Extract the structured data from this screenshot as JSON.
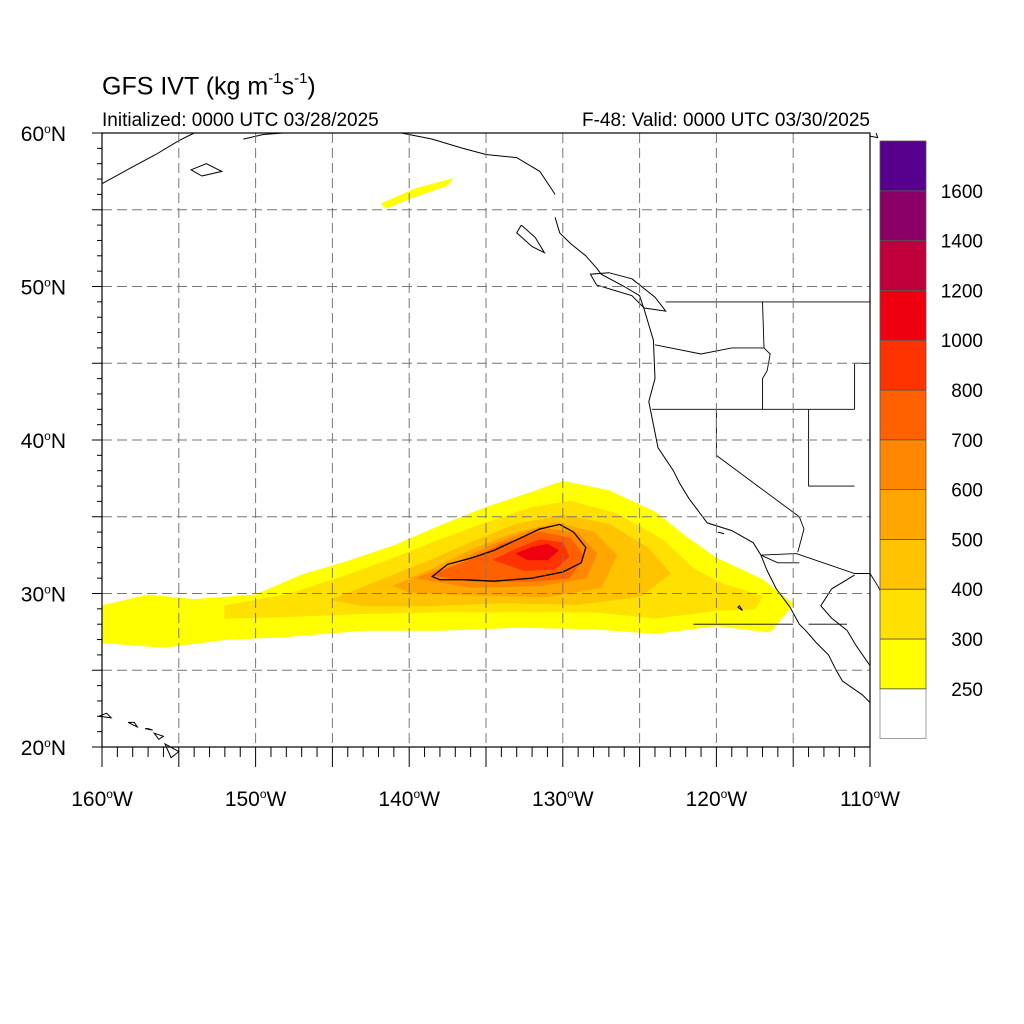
{
  "title": {
    "prefix": "GFS IVT (kg m",
    "exp1": "-1",
    "mid": "s",
    "exp2": "-1",
    "suffix": ")"
  },
  "initialized": "Initialized: 0000 UTC 03/28/2025",
  "valid": "F-48: Valid: 0000 UTC 03/30/2025",
  "lat_labels": [
    {
      "lat": 60,
      "num": "60",
      "unit": "N"
    },
    {
      "lat": 50,
      "num": "50",
      "unit": "N"
    },
    {
      "lat": 40,
      "num": "40",
      "unit": "N"
    },
    {
      "lat": 30,
      "num": "30",
      "unit": "N"
    },
    {
      "lat": 20,
      "num": "20",
      "unit": "N"
    }
  ],
  "lon_labels": [
    {
      "lon": -160,
      "num": "160",
      "unit": "W"
    },
    {
      "lon": -150,
      "num": "150",
      "unit": "W"
    },
    {
      "lon": -140,
      "num": "140",
      "unit": "W"
    },
    {
      "lon": -130,
      "num": "130",
      "unit": "W"
    },
    {
      "lon": -120,
      "num": "120",
      "unit": "W"
    },
    {
      "lon": -110,
      "num": "110",
      "unit": "W"
    }
  ],
  "colorbar": {
    "labels": [
      "250",
      "300",
      "400",
      "500",
      "600",
      "700",
      "800",
      "1000",
      "1200",
      "1400",
      "1600"
    ],
    "colors": [
      "#ffffff",
      "#ffff00",
      "#ffe000",
      "#ffc300",
      "#ffa600",
      "#ff8800",
      "#ff6000",
      "#ff3300",
      "#ee0010",
      "#c0003c",
      "#8b0067",
      "#56008d"
    ]
  },
  "map_extent": {
    "lon_min": -160,
    "lon_max": -110,
    "lat_min": 20,
    "lat_max": 60
  },
  "ivt_field": {
    "units": "kg m-1 s-1",
    "bands": [
      {
        "level": 250,
        "color": "#ffff00",
        "outline": [
          [
            -160,
            29.2
          ],
          [
            -157,
            29.9
          ],
          [
            -154,
            29.6
          ],
          [
            -150,
            29.9
          ],
          [
            -147,
            31.2
          ],
          [
            -144,
            32.1
          ],
          [
            -141,
            33.1
          ],
          [
            -138,
            34.4
          ],
          [
            -135,
            35.6
          ],
          [
            -132,
            36.6
          ],
          [
            -130,
            37.3
          ],
          [
            -127,
            36.7
          ],
          [
            -124,
            35.3
          ],
          [
            -122,
            33.7
          ],
          [
            -120,
            32.3
          ],
          [
            -117,
            30.9
          ],
          [
            -115,
            29.3
          ],
          [
            -116.5,
            27.5
          ],
          [
            -120,
            27.9
          ],
          [
            -124,
            27.4
          ],
          [
            -128,
            27.7
          ],
          [
            -133,
            27.8
          ],
          [
            -138,
            27.6
          ],
          [
            -143,
            27.6
          ],
          [
            -148,
            27.2
          ],
          [
            -152,
            27.0
          ],
          [
            -156,
            26.5
          ],
          [
            -160,
            26.8
          ]
        ]
      },
      {
        "level": 300,
        "color": "#ffe000",
        "outline": [
          [
            -152,
            29.2
          ],
          [
            -148,
            29.9
          ],
          [
            -144,
            31.2
          ],
          [
            -141,
            32.3
          ],
          [
            -138,
            33.5
          ],
          [
            -135,
            34.6
          ],
          [
            -132,
            35.6
          ],
          [
            -129.5,
            36.0
          ],
          [
            -126.5,
            35.2
          ],
          [
            -123.5,
            33.5
          ],
          [
            -121.5,
            31.6
          ],
          [
            -119.5,
            30.6
          ],
          [
            -117,
            29.8
          ],
          [
            -117.5,
            29.0
          ],
          [
            -120,
            28.9
          ],
          [
            -124,
            28.4
          ],
          [
            -128,
            28.8
          ],
          [
            -133,
            28.8
          ],
          [
            -138,
            28.8
          ],
          [
            -143,
            28.7
          ],
          [
            -148,
            28.5
          ],
          [
            -152,
            28.4
          ]
        ]
      },
      {
        "level": 400,
        "color": "#ffc300",
        "outline": [
          [
            -145,
            29.6
          ],
          [
            -142,
            30.8
          ],
          [
            -139,
            32.0
          ],
          [
            -136,
            33.3
          ],
          [
            -133,
            34.5
          ],
          [
            -130,
            35.1
          ],
          [
            -127,
            34.5
          ],
          [
            -124.5,
            33.0
          ],
          [
            -123,
            31.3
          ],
          [
            -125,
            29.8
          ],
          [
            -129,
            29.3
          ],
          [
            -134,
            29.4
          ],
          [
            -139,
            29.2
          ],
          [
            -143,
            29.2
          ]
        ]
      },
      {
        "level": 500,
        "color": "#ffa600",
        "outline": [
          [
            -141,
            30.5
          ],
          [
            -138.5,
            31.6
          ],
          [
            -136,
            32.8
          ],
          [
            -133.5,
            33.8
          ],
          [
            -130.5,
            34.6
          ],
          [
            -128,
            34.0
          ],
          [
            -126.5,
            32.5
          ],
          [
            -127.5,
            30.4
          ],
          [
            -131,
            29.8
          ],
          [
            -136,
            29.9
          ],
          [
            -140,
            30.1
          ]
        ]
      },
      {
        "level": 600,
        "color": "#ff8800",
        "outline": [
          [
            -139.5,
            31.0
          ],
          [
            -137,
            32.0
          ],
          [
            -134.5,
            33.2
          ],
          [
            -131.5,
            34.3
          ],
          [
            -129,
            33.9
          ],
          [
            -127.8,
            32.6
          ],
          [
            -128.5,
            31.0
          ],
          [
            -131.5,
            30.5
          ],
          [
            -136,
            30.4
          ]
        ]
      },
      {
        "level": 700,
        "color": "#ff6000",
        "outline": [
          [
            -138.5,
            31.2
          ],
          [
            -136,
            32.2
          ],
          [
            -134,
            33.2
          ],
          [
            -131.5,
            34.0
          ],
          [
            -129.5,
            33.6
          ],
          [
            -128.6,
            32.4
          ],
          [
            -129.6,
            31.0
          ],
          [
            -132,
            30.8
          ],
          [
            -136,
            30.8
          ]
        ]
      },
      {
        "level": 800,
        "color": "#ff3300",
        "outline": [
          [
            -134.5,
            32.2
          ],
          [
            -133,
            32.9
          ],
          [
            -131.5,
            33.5
          ],
          [
            -130,
            33.3
          ],
          [
            -129.6,
            32.4
          ],
          [
            -130.5,
            31.6
          ],
          [
            -132.5,
            31.5
          ]
        ]
      },
      {
        "level": 1000,
        "color": "#ee0010",
        "outline": [
          [
            -133,
            32.6
          ],
          [
            -132,
            33.0
          ],
          [
            -131,
            33.2
          ],
          [
            -130.3,
            32.8
          ],
          [
            -131,
            32.2
          ],
          [
            -132.3,
            32.2
          ]
        ]
      }
    ],
    "contour": [
      [
        -138.5,
        31.1
      ],
      [
        -137.5,
        31.9
      ],
      [
        -136,
        32.3
      ],
      [
        -134.5,
        32.8
      ],
      [
        -133,
        33.5
      ],
      [
        -131.5,
        34.2
      ],
      [
        -130.2,
        34.5
      ],
      [
        -129.3,
        34.0
      ],
      [
        -128.5,
        33.0
      ],
      [
        -128.8,
        32.0
      ],
      [
        -130,
        31.4
      ],
      [
        -132,
        31.0
      ],
      [
        -134.5,
        30.8
      ],
      [
        -136.5,
        30.9
      ],
      [
        -138,
        30.9
      ]
    ],
    "patch": {
      "level": 250,
      "color": "#ffff00",
      "outline": [
        [
          -141.8,
          55.4
        ],
        [
          -139.5,
          56.4
        ],
        [
          -137.2,
          57.0
        ],
        [
          -137.5,
          56.6
        ],
        [
          -139.8,
          55.8
        ],
        [
          -141.5,
          55.1
        ]
      ]
    }
  },
  "coastlines": [
    [
      [
        -130.5,
        56.0
      ],
      [
        -131.5,
        57.5
      ],
      [
        -133.0,
        58.4
      ],
      [
        -135.0,
        58.6
      ],
      [
        -136.5,
        59.0
      ],
      [
        -138.5,
        59.6
      ],
      [
        -140.5,
        60.0
      ],
      [
        -141.8,
        60.0
      ]
    ],
    [
      [
        -130.5,
        54.5
      ],
      [
        -130.2,
        53.5
      ],
      [
        -129.5,
        52.8
      ],
      [
        -128.5,
        52.0
      ],
      [
        -127.8,
        51.2
      ],
      [
        -127.5,
        50.8
      ],
      [
        -126.0,
        50.0
      ],
      [
        -125.0,
        49.4
      ],
      [
        -124.7,
        48.5
      ],
      [
        -124.1,
        46.5
      ],
      [
        -124.0,
        44.0
      ],
      [
        -124.4,
        42.5
      ],
      [
        -124.1,
        41.0
      ],
      [
        -123.8,
        39.5
      ],
      [
        -122.8,
        38.0
      ],
      [
        -122.4,
        37.2
      ],
      [
        -121.8,
        36.2
      ],
      [
        -120.6,
        34.6
      ],
      [
        -119.0,
        34.1
      ],
      [
        -117.6,
        33.3
      ],
      [
        -117.1,
        32.5
      ],
      [
        -116.7,
        31.5
      ],
      [
        -116.1,
        30.3
      ],
      [
        -115.2,
        29.1
      ],
      [
        -114.6,
        28.0
      ],
      [
        -114.2,
        27.6
      ],
      [
        -113.5,
        26.8
      ],
      [
        -112.7,
        26.0
      ],
      [
        -112.2,
        25.0
      ],
      [
        -111.8,
        24.3
      ],
      [
        -110.5,
        23.4
      ],
      [
        -110.0,
        22.9
      ]
    ],
    [
      [
        -111.0,
        31.2
      ],
      [
        -112.5,
        30.3
      ],
      [
        -113.2,
        29.2
      ],
      [
        -112.5,
        28.4
      ],
      [
        -111.5,
        27.6
      ],
      [
        -110.9,
        26.6
      ],
      [
        -110.0,
        25.3
      ]
    ],
    [
      [
        -125.5,
        50.5
      ],
      [
        -124.0,
        49.3
      ],
      [
        -123.3,
        48.4
      ],
      [
        -124.7,
        48.6
      ],
      [
        -125.5,
        49.4
      ],
      [
        -127.8,
        50.1
      ],
      [
        -128.2,
        50.8
      ],
      [
        -127.0,
        50.9
      ],
      [
        -125.5,
        50.5
      ]
    ],
    [
      [
        -132.7,
        54.0
      ],
      [
        -131.8,
        53.2
      ],
      [
        -131.2,
        52.2
      ],
      [
        -132.0,
        52.6
      ],
      [
        -133.0,
        53.5
      ],
      [
        -132.7,
        54.0
      ]
    ],
    [
      [
        -160,
        56.7
      ],
      [
        -158,
        57.8
      ],
      [
        -156.5,
        58.6
      ],
      [
        -155,
        59.5
      ],
      [
        -154,
        60
      ]
    ],
    [
      [
        -153.5,
        57.2
      ],
      [
        -152.2,
        57.5
      ],
      [
        -153.2,
        58.0
      ],
      [
        -154.2,
        57.6
      ],
      [
        -153.5,
        57.2
      ]
    ],
    [
      [
        -150.8,
        59.6
      ],
      [
        -149.5,
        59.9
      ],
      [
        -148.2,
        60.0
      ]
    ],
    [
      [
        -109.6,
        60
      ],
      [
        -109.5,
        59.7
      ],
      [
        -110,
        59.8
      ]
    ]
  ],
  "islands": [
    [
      [
        -160.2,
        22.0
      ],
      [
        -159.4,
        21.9
      ],
      [
        -159.7,
        22.2
      ],
      [
        -160.2,
        22.0
      ]
    ],
    [
      [
        -158.3,
        21.6
      ],
      [
        -157.7,
        21.3
      ],
      [
        -157.9,
        21.6
      ],
      [
        -158.3,
        21.6
      ]
    ],
    [
      [
        -157.2,
        21.2
      ],
      [
        -156.7,
        21.1
      ],
      [
        -157.0,
        21.2
      ]
    ],
    [
      [
        -156.6,
        20.9
      ],
      [
        -156.0,
        20.7
      ],
      [
        -156.3,
        20.5
      ],
      [
        -156.6,
        20.9
      ]
    ],
    [
      [
        -155.9,
        20.2
      ],
      [
        -155.0,
        19.7
      ],
      [
        -155.5,
        19.3
      ],
      [
        -155.9,
        20.2
      ]
    ],
    [
      [
        -118.6,
        29.1
      ],
      [
        -118.3,
        28.9
      ],
      [
        -118.5,
        29.2
      ]
    ],
    [
      [
        -119.9,
        34.0
      ],
      [
        -119.5,
        33.9
      ],
      [
        -119.9,
        34.0
      ]
    ]
  ],
  "borders": [
    [
      [
        -123.3,
        49.0
      ],
      [
        -110.0,
        49.0
      ]
    ],
    [
      [
        -124.0,
        46.2
      ],
      [
        -121.0,
        45.6
      ],
      [
        -119.0,
        46.0
      ],
      [
        -116.9,
        46.0
      ],
      [
        -117.0,
        49.0
      ]
    ],
    [
      [
        -116.9,
        46.0
      ],
      [
        -116.5,
        45.6
      ],
      [
        -116.7,
        44.5
      ],
      [
        -117.0,
        44.0
      ],
      [
        -117.0,
        42.0
      ]
    ],
    [
      [
        -124.2,
        42.0
      ],
      [
        -111.0,
        42.0
      ]
    ],
    [
      [
        -120.0,
        42.0
      ],
      [
        -120.0,
        39.0
      ],
      [
        -114.6,
        35.0
      ],
      [
        -114.3,
        34.2
      ],
      [
        -114.7,
        32.7
      ]
    ],
    [
      [
        -114.0,
        42.0
      ],
      [
        -114.0,
        37.0
      ],
      [
        -111.0,
        37.0
      ]
    ],
    [
      [
        -111.0,
        42.0
      ],
      [
        -111.0,
        45.0
      ],
      [
        -110.0,
        45.0
      ]
    ],
    [
      [
        -117.1,
        32.5
      ],
      [
        -114.8,
        32.6
      ],
      [
        -111.0,
        31.3
      ],
      [
        -110.0,
        31.3
      ]
    ],
    [
      [
        -117.1,
        32.5
      ],
      [
        -116.0,
        32.0
      ],
      [
        -114.6,
        32.0
      ]
    ],
    [
      [
        -114.0,
        28.0
      ],
      [
        -111.5,
        28.0
      ]
    ],
    [
      [
        -110.0,
        31.3
      ],
      [
        -109.5,
        30.5
      ],
      [
        -109.0,
        29.5
      ]
    ],
    [
      [
        -121.5,
        28.0
      ],
      [
        -117.0,
        28.0
      ],
      [
        -115.0,
        28.0
      ]
    ]
  ]
}
